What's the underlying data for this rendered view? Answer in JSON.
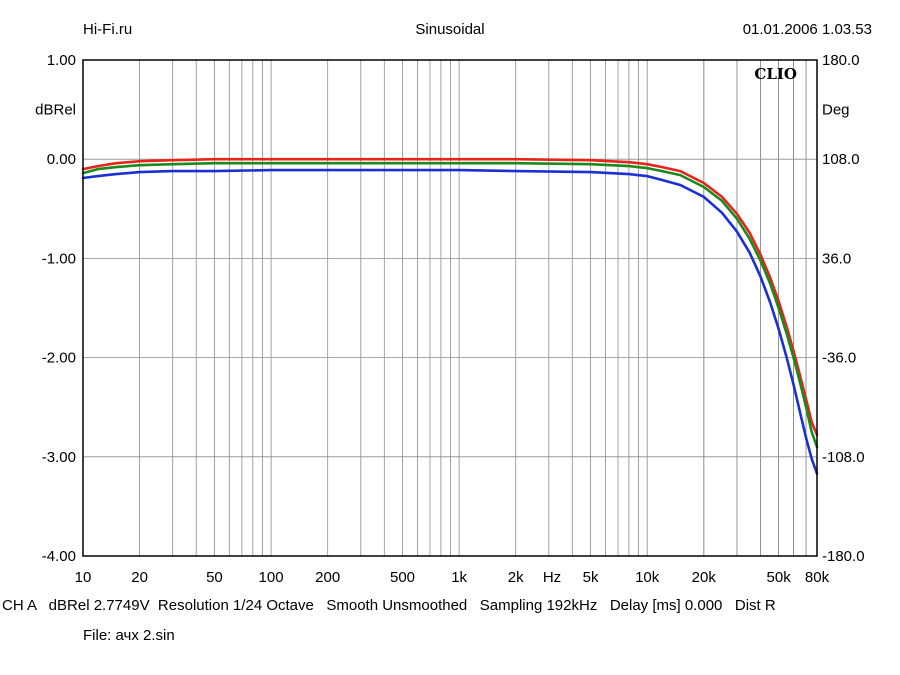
{
  "header": {
    "site": "Hi-Fi.ru",
    "signal": "Sinusoidal",
    "datetime": "01.01.2006 1.03.53"
  },
  "footer": {
    "info_line": "CH A   dBRel 2.7749V  Resolution 1/24 Octave   Smooth Unsmoothed   Sampling 192kHz   Delay [ms] 0.000   Dist R",
    "file": "File: ачх 2.sin"
  },
  "chart_data": {
    "type": "line",
    "brand_label": "CLIO",
    "xlabel": "Hz",
    "ylabel": "dBRel",
    "y2label": "Deg",
    "xscale": "log",
    "xlim": [
      10,
      80000
    ],
    "ylim": [
      -4,
      1
    ],
    "y2lim": [
      -180,
      180
    ],
    "grid": true,
    "x_ticks": [
      {
        "value": 10,
        "label": "10"
      },
      {
        "value": 20,
        "label": "20"
      },
      {
        "value": 50,
        "label": "50"
      },
      {
        "value": 100,
        "label": "100"
      },
      {
        "value": 200,
        "label": "200"
      },
      {
        "value": 500,
        "label": "500"
      },
      {
        "value": 1000,
        "label": "1k"
      },
      {
        "value": 2000,
        "label": "2k"
      },
      {
        "value": 5000,
        "label": "5k"
      },
      {
        "value": 10000,
        "label": "10k"
      },
      {
        "value": 20000,
        "label": "20k"
      },
      {
        "value": 50000,
        "label": "50k"
      },
      {
        "value": 80000,
        "label": "80k"
      }
    ],
    "y_ticks": [
      {
        "value": 1,
        "label": "1.00"
      },
      {
        "value": 0,
        "label": "0.00"
      },
      {
        "value": -1,
        "label": "-1.00"
      },
      {
        "value": -2,
        "label": "-2.00"
      },
      {
        "value": -3,
        "label": "-3.00"
      },
      {
        "value": -4,
        "label": "-4.00"
      }
    ],
    "y2_ticks": [
      {
        "value": 180,
        "label": "180.0"
      },
      {
        "value": 108,
        "label": "108.0"
      },
      {
        "value": 36,
        "label": "36.0"
      },
      {
        "value": -36,
        "label": "-36.0"
      },
      {
        "value": -108,
        "label": "-108.0"
      },
      {
        "value": -180,
        "label": "-180.0"
      }
    ],
    "series": [
      {
        "color": "#e8231c",
        "x": [
          10,
          12,
          15,
          20,
          30,
          50,
          100,
          200,
          500,
          1000,
          2000,
          5000,
          8000,
          10000,
          12000,
          15000,
          20000,
          25000,
          30000,
          35000,
          40000,
          45000,
          50000,
          55000,
          60000,
          65000,
          70000,
          75000,
          80000
        ],
        "y": [
          -0.1,
          -0.07,
          -0.04,
          -0.02,
          -0.01,
          0.0,
          0.0,
          0.0,
          0.0,
          0.0,
          0.0,
          -0.01,
          -0.03,
          -0.05,
          -0.08,
          -0.12,
          -0.24,
          -0.38,
          -0.55,
          -0.74,
          -0.96,
          -1.19,
          -1.43,
          -1.68,
          -1.93,
          -2.18,
          -2.42,
          -2.65,
          -2.78
        ]
      },
      {
        "color": "#1a8a1a",
        "x": [
          10,
          12,
          15,
          20,
          30,
          50,
          100,
          200,
          500,
          1000,
          2000,
          5000,
          8000,
          10000,
          12000,
          15000,
          20000,
          25000,
          30000,
          35000,
          40000,
          45000,
          50000,
          55000,
          60000,
          65000,
          70000,
          75000,
          80000
        ],
        "y": [
          -0.14,
          -0.1,
          -0.08,
          -0.06,
          -0.05,
          -0.04,
          -0.04,
          -0.04,
          -0.04,
          -0.04,
          -0.04,
          -0.05,
          -0.07,
          -0.09,
          -0.12,
          -0.16,
          -0.28,
          -0.42,
          -0.6,
          -0.8,
          -1.02,
          -1.25,
          -1.5,
          -1.75,
          -2.0,
          -2.25,
          -2.5,
          -2.75,
          -2.9
        ]
      },
      {
        "color": "#1a2fd4",
        "x": [
          10,
          12,
          15,
          20,
          30,
          50,
          100,
          200,
          500,
          1000,
          2000,
          5000,
          8000,
          10000,
          12000,
          15000,
          20000,
          25000,
          30000,
          35000,
          40000,
          45000,
          50000,
          55000,
          60000,
          65000,
          70000,
          75000,
          80000
        ],
        "y": [
          -0.19,
          -0.17,
          -0.15,
          -0.13,
          -0.12,
          -0.12,
          -0.11,
          -0.11,
          -0.11,
          -0.11,
          -0.12,
          -0.13,
          -0.15,
          -0.17,
          -0.21,
          -0.26,
          -0.38,
          -0.54,
          -0.73,
          -0.94,
          -1.18,
          -1.44,
          -1.71,
          -1.99,
          -2.27,
          -2.55,
          -2.81,
          -3.02,
          -3.17
        ]
      }
    ]
  }
}
